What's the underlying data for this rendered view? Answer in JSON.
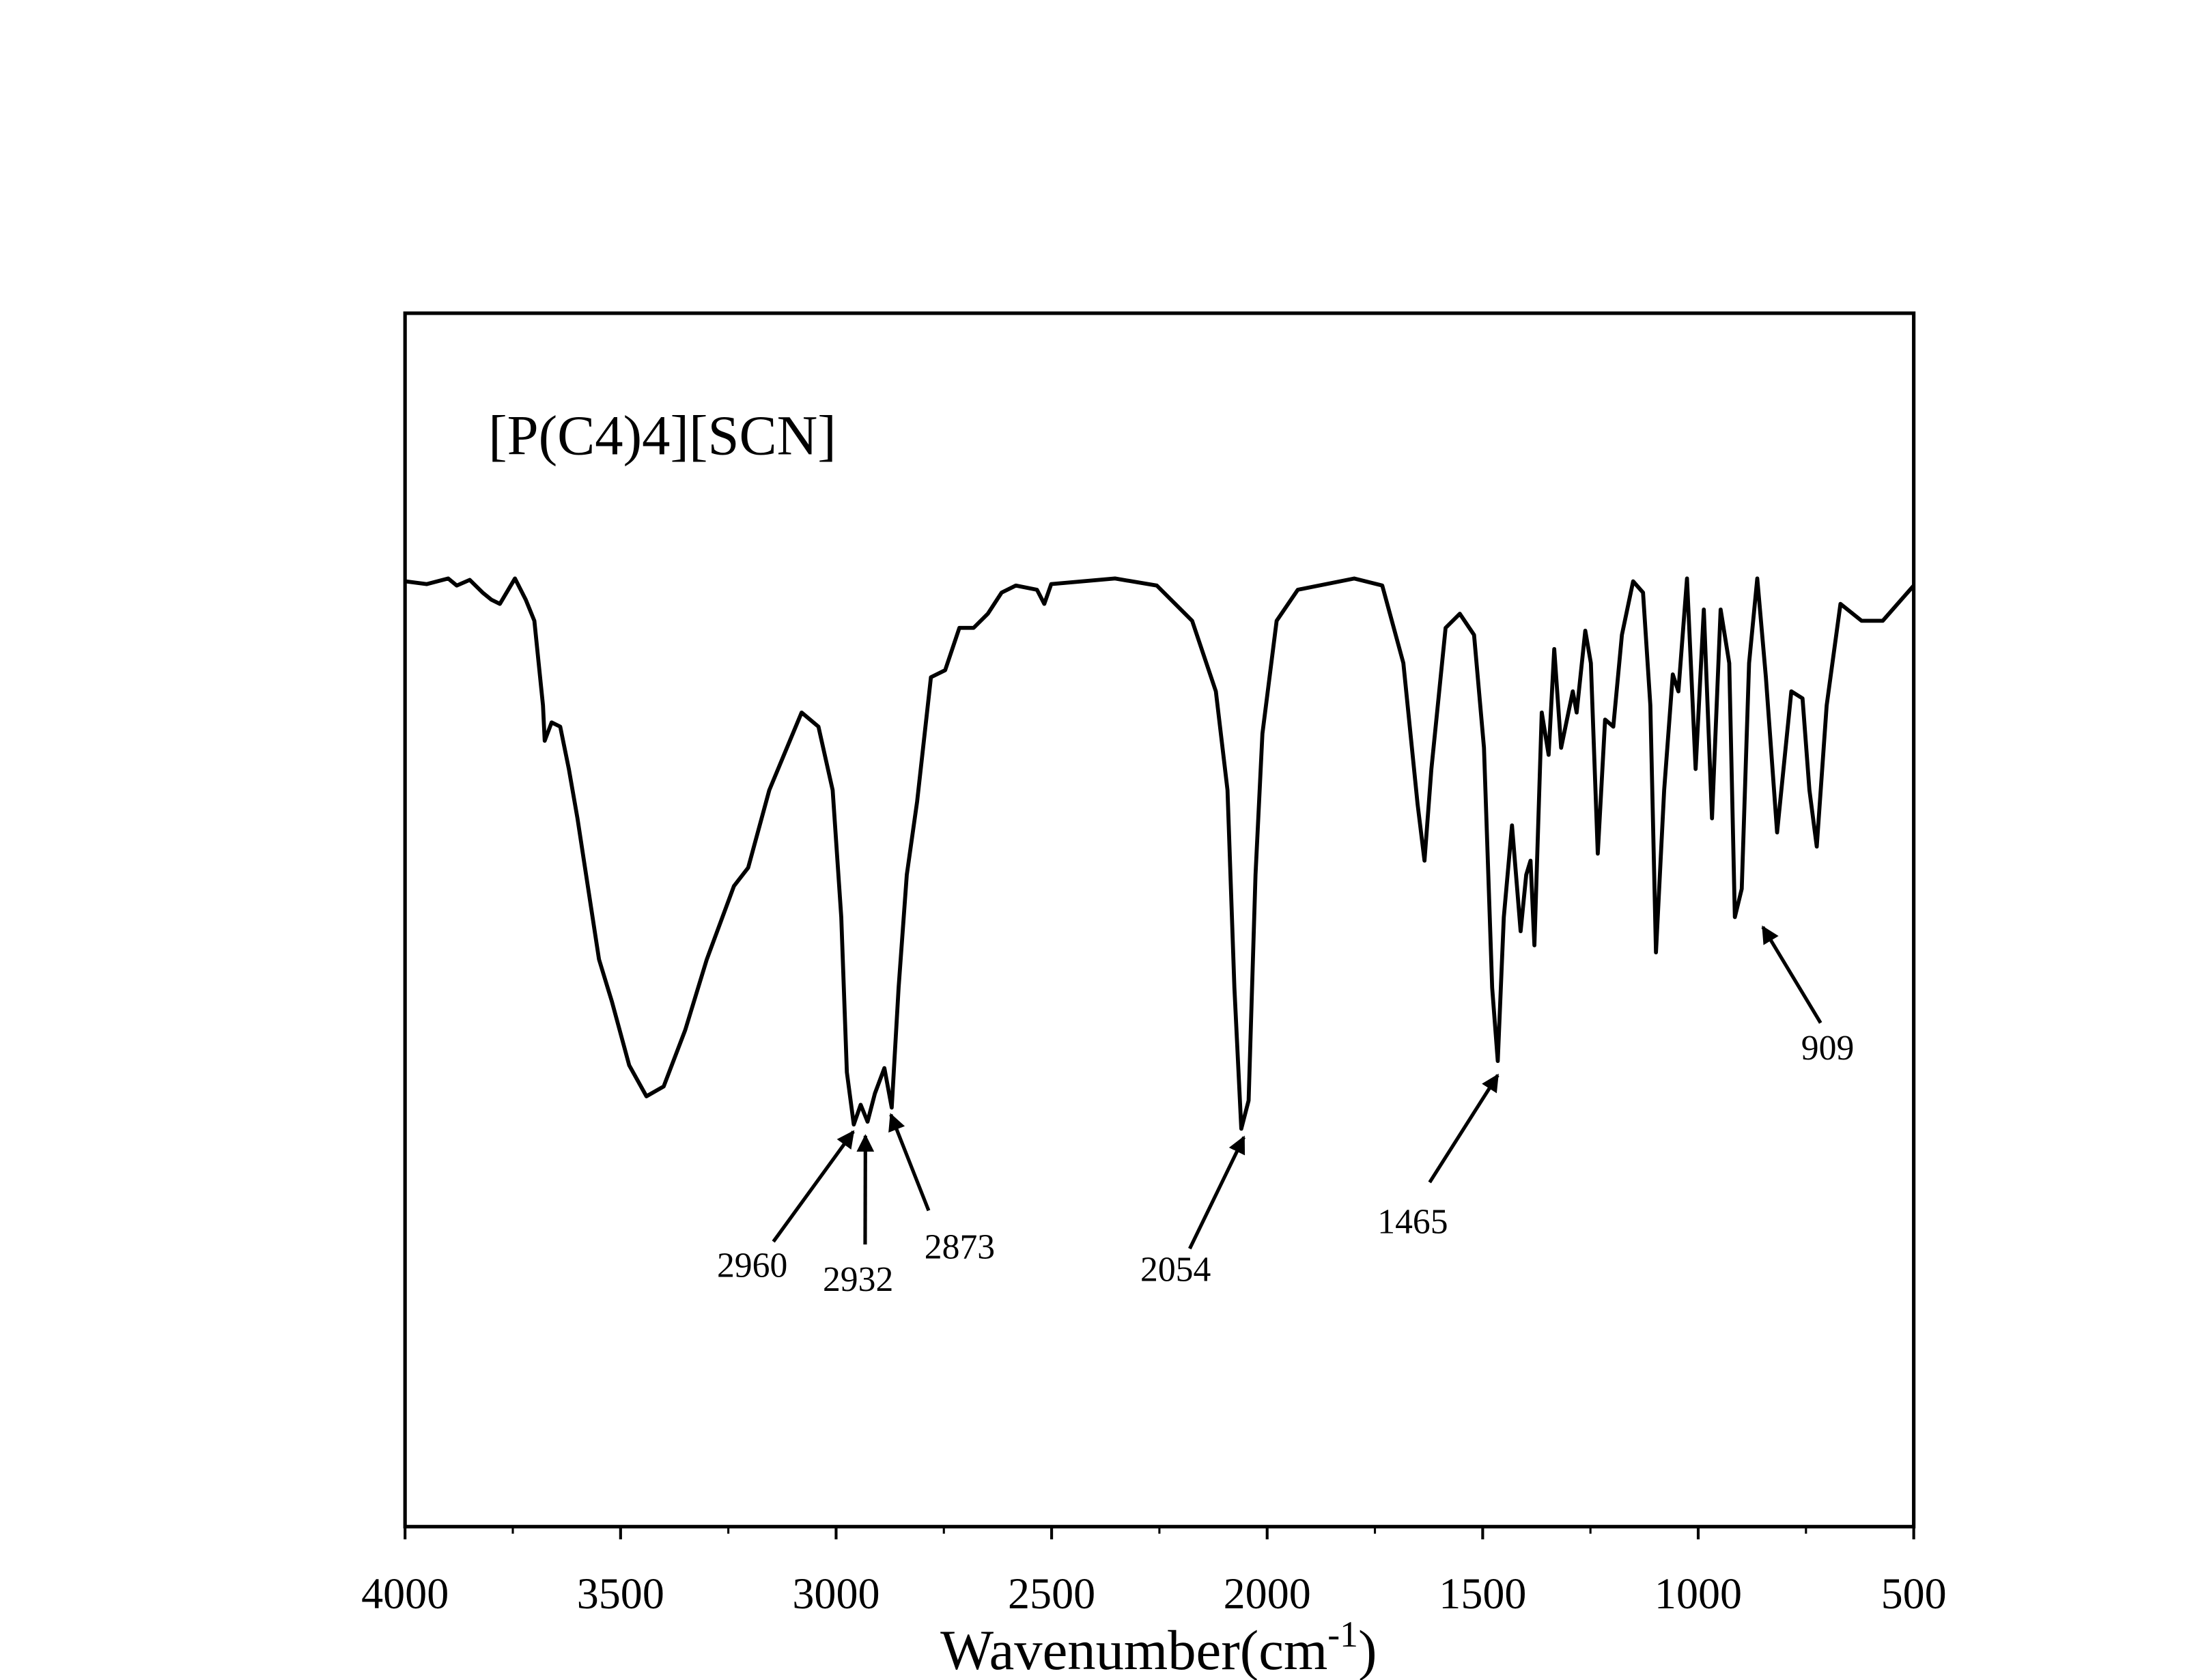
{
  "chart_data": {
    "type": "line",
    "title": "[P(C4)4][SCN]",
    "xlabel": "Wavenumber(cm",
    "xlabel_sup": "-1",
    "xlabel_end": ")",
    "xlim": [
      4000,
      500
    ],
    "xticks": [
      4000,
      3500,
      3000,
      2500,
      2000,
      1500,
      1000,
      500
    ],
    "ylim": [
      0,
      86
    ],
    "annotations": [
      2960,
      2932,
      2873,
      2054,
      1465,
      909
    ],
    "series": [
      {
        "color": "#000000",
        "x": [
          4000,
          3950,
          3900,
          3880,
          3850,
          3820,
          3800,
          3780,
          3745,
          3720,
          3700,
          3690,
          3680,
          3676,
          3660,
          3640,
          3620,
          3600,
          3570,
          3550,
          3520,
          3480,
          3440,
          3400,
          3350,
          3300,
          3237,
          3204,
          3155,
          3080,
          3041,
          3008,
          2988,
          2975,
          2959,
          2943,
          2927,
          2910,
          2888,
          2871,
          2855,
          2836,
          2812,
          2780,
          2747,
          2714,
          2681,
          2648,
          2616,
          2583,
          2534,
          2517,
          2501,
          2353,
          2256,
          2174,
          2119,
          2092,
          2076,
          2060,
          2043,
          2027,
          2011,
          1978,
          1929,
          1798,
          1733,
          1684,
          1651,
          1635,
          1619,
          1586,
          1553,
          1520,
          1497,
          1478,
          1465,
          1451,
          1432,
          1412,
          1399,
          1389,
          1380,
          1363,
          1347,
          1334,
          1318,
          1291,
          1282,
          1262,
          1249,
          1233,
          1216,
          1197,
          1177,
          1151,
          1128,
          1111,
          1098,
          1079,
          1059,
          1046,
          1026,
          1006,
          987,
          968,
          948,
          928,
          915,
          899,
          882,
          863,
          843,
          817,
          784,
          758,
          742,
          725,
          702,
          670,
          621,
          572,
          500
        ],
        "values": [
          67.0,
          66.8,
          67.2,
          66.7,
          67.1,
          66.2,
          65.7,
          65.4,
          67.2,
          65.7,
          64.2,
          61.2,
          58.2,
          55.7,
          57.0,
          56.7,
          53.7,
          50.2,
          44.2,
          40.2,
          37.2,
          32.7,
          30.5,
          31.2,
          35.2,
          40.2,
          45.4,
          46.7,
          52.2,
          57.7,
          56.7,
          52.2,
          43.2,
          32.2,
          28.5,
          29.9,
          28.7,
          30.7,
          32.5,
          29.7,
          38.2,
          46.2,
          51.4,
          60.2,
          60.7,
          63.7,
          63.7,
          64.7,
          66.2,
          66.7,
          66.4,
          65.4,
          66.8,
          67.2,
          66.7,
          64.2,
          59.2,
          52.2,
          38.2,
          28.2,
          30.2,
          46.2,
          56.2,
          64.2,
          66.4,
          67.2,
          66.7,
          61.2,
          51.2,
          47.2,
          53.7,
          63.7,
          64.7,
          63.2,
          55.2,
          38.2,
          33.0,
          43.2,
          49.7,
          42.2,
          46.2,
          47.2,
          41.2,
          57.7,
          54.7,
          62.2,
          55.2,
          59.2,
          57.7,
          63.5,
          61.2,
          47.7,
          57.2,
          56.7,
          63.2,
          67.0,
          66.2,
          58.2,
          40.7,
          52.2,
          60.4,
          59.2,
          67.2,
          53.7,
          65.0,
          50.2,
          65.0,
          61.2,
          43.2,
          45.2,
          61.2,
          67.2,
          60.2,
          49.2,
          59.2,
          58.7,
          52.2,
          48.2,
          58.2,
          65.4,
          64.2,
          64.2,
          66.7
        ]
      }
    ]
  }
}
